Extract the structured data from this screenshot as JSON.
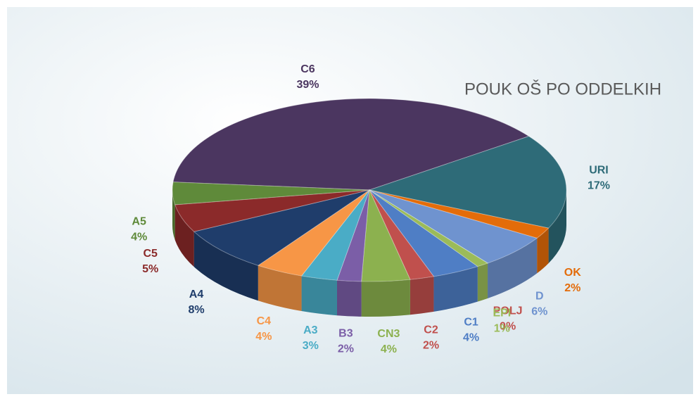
{
  "chart_data": {
    "type": "pie3d",
    "title": "POUK OŠ PO ODDELKIH",
    "categories": [
      "C6",
      "URI",
      "OK",
      "D",
      "POLJ",
      "EPI",
      "C1",
      "C2",
      "CN3",
      "B3",
      "A3",
      "C4",
      "A4",
      "C5",
      "A5"
    ],
    "values": [
      39,
      17,
      2,
      6,
      0,
      1,
      4,
      2,
      4,
      2,
      3,
      4,
      8,
      5,
      4
    ],
    "value_labels": [
      "39%",
      "17%",
      "2%",
      "6%",
      "0%",
      "1%",
      "4%",
      "2%",
      "4%",
      "2%",
      "3%",
      "4%",
      "8%",
      "5%",
      "4%"
    ],
    "colors": [
      "#4b3660",
      "#2e6b78",
      "#e36c0a",
      "#6f93cf",
      "#c0504d",
      "#9bbb59",
      "#4f7ec5",
      "#c0504d",
      "#8cb14f",
      "#7b5ea7",
      "#4aacc6",
      "#f79646",
      "#1f3d6b",
      "#8b2a2a",
      "#5f8a3a"
    ]
  }
}
